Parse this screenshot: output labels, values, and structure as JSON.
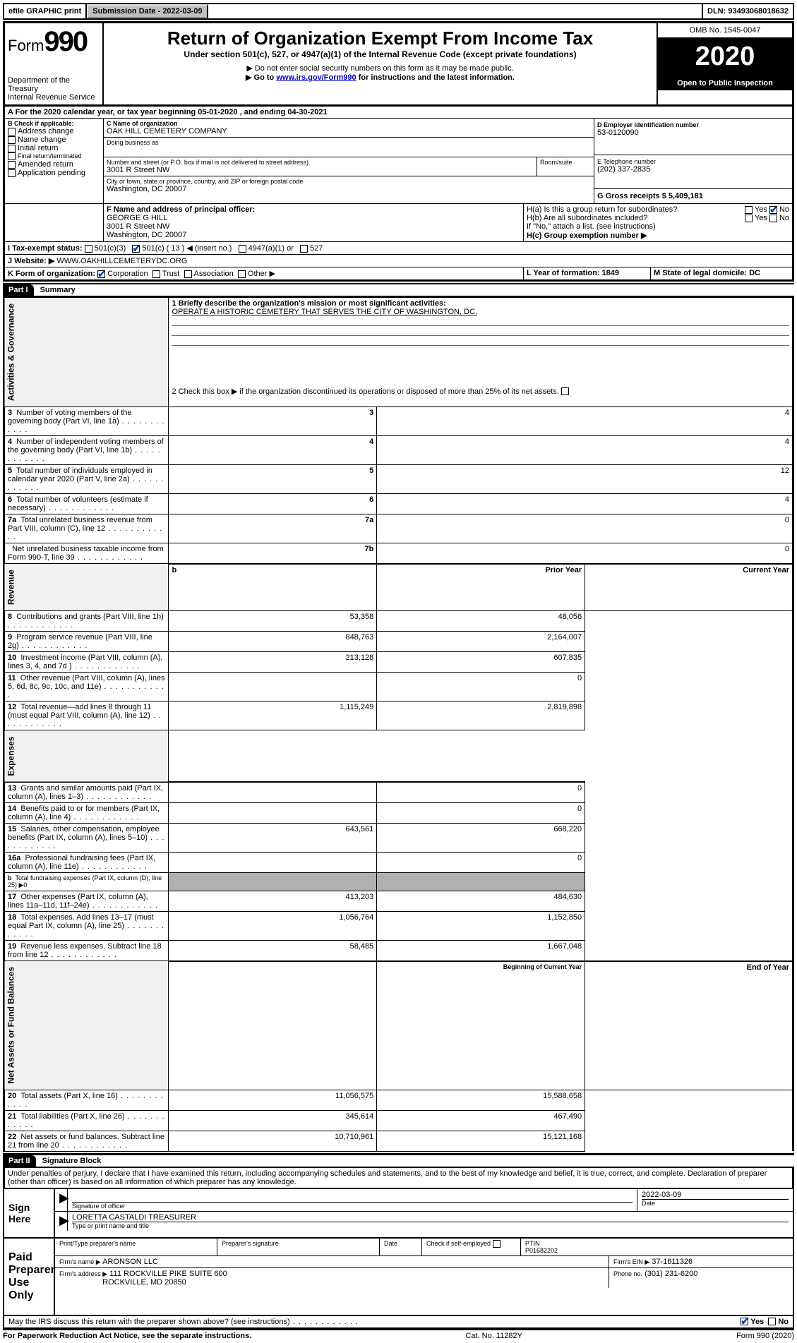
{
  "topbar": {
    "efile": "efile GRAPHIC print",
    "sub_label": "Submission Date - 2022-03-09",
    "dln": "DLN: 93493068018632"
  },
  "header": {
    "form_label": "Form",
    "form_num": "990",
    "dept": "Department of the Treasury\nInternal Revenue Service",
    "title": "Return of Organization Exempt From Income Tax",
    "subtitle": "Under section 501(c), 527, or 4947(a)(1) of the Internal Revenue Code (except private foundations)",
    "note1": "▶ Do not enter social security numbers on this form as it may be made public.",
    "note2_pre": "▶ Go to ",
    "note2_link": "www.irs.gov/Form990",
    "note2_post": " for instructions and the latest information.",
    "omb": "OMB No. 1545-0047",
    "year": "2020",
    "open": "Open to Public Inspection"
  },
  "A": {
    "line": "For the 2020 calendar year, or tax year beginning 05-01-2020   , and ending 04-30-2021"
  },
  "B": {
    "label": "B Check if applicable:",
    "opts": [
      "Address change",
      "Name change",
      "Initial return",
      "Final return/terminated",
      "Amended return",
      "Application pending"
    ]
  },
  "C": {
    "name_label": "C Name of organization",
    "name": "OAK HILL CEMETERY COMPANY",
    "dba_label": "Doing business as",
    "addr_label": "Number and street (or P.O. box if mail is not delivered to street address)",
    "room_label": "Room/suite",
    "addr": "3001 R Street NW",
    "city_label": "City or town, state or province, country, and ZIP or foreign postal code",
    "city": "Washington, DC  20007"
  },
  "D": {
    "label": "D Employer identification number",
    "val": "53-0120090"
  },
  "E": {
    "label": "E Telephone number",
    "val": "(202) 337-2835"
  },
  "G": {
    "label": "G Gross receipts $ 5,409,181"
  },
  "F": {
    "label": "F  Name and address of principal officer:",
    "name": "GEORGE G HILL",
    "addr1": "3001 R Street NW",
    "addr2": "Washington, DC  20007"
  },
  "H": {
    "a": "H(a)  Is this a group return for subordinates?",
    "b": "H(b)  Are all subordinates included?",
    "b_note": "If \"No,\" attach a list. (see instructions)",
    "c": "H(c)  Group exemption number ▶",
    "yes": "Yes",
    "no": "No"
  },
  "I": {
    "label": "I   Tax-exempt status:",
    "o1": "501(c)(3)",
    "o2": "501(c) ( 13 ) ◀ (insert no.)",
    "o3": "4947(a)(1) or",
    "o4": "527"
  },
  "J": {
    "label": "J   Website: ▶",
    "val": "WWW.OAKHILLCEMETERYDC.ORG"
  },
  "K": {
    "label": "K Form of organization:",
    "o1": "Corporation",
    "o2": "Trust",
    "o3": "Association",
    "o4": "Other ▶"
  },
  "L": {
    "label": "L Year of formation: 1849"
  },
  "M": {
    "label": "M State of legal domicile: DC"
  },
  "part1": {
    "tag": "Part I",
    "title": "Summary",
    "q1": "1  Briefly describe the organization's mission or most significant activities:",
    "q1_ans": "OPERATE A HISTORIC CEMETERY THAT SERVES THE CITY OF WASHINGTON, DC.",
    "q2": "2   Check this box ▶          if the organization discontinued its operations or disposed of more than 25% of its net assets.",
    "rows_gov": [
      {
        "n": "3",
        "t": "Number of voting members of the governing body (Part VI, line 1a)",
        "k": "3",
        "v": "4"
      },
      {
        "n": "4",
        "t": "Number of independent voting members of the governing body (Part VI, line 1b)",
        "k": "4",
        "v": "4"
      },
      {
        "n": "5",
        "t": "Total number of individuals employed in calendar year 2020 (Part V, line 2a)",
        "k": "5",
        "v": "12"
      },
      {
        "n": "6",
        "t": "Total number of volunteers (estimate if necessary)",
        "k": "6",
        "v": "4"
      },
      {
        "n": "7a",
        "t": "Total unrelated business revenue from Part VIII, column (C), line 12",
        "k": "7a",
        "v": "0"
      },
      {
        "n": "",
        "t": "Net unrelated business taxable income from Form 990-T, line 39",
        "k": "7b",
        "v": "0"
      }
    ],
    "hdr_prior": "Prior Year",
    "hdr_curr": "Current Year",
    "rows_rev": [
      {
        "n": "8",
        "t": "Contributions and grants (Part VIII, line 1h)",
        "p": "53,358",
        "c": "48,056"
      },
      {
        "n": "9",
        "t": "Program service revenue (Part VIII, line 2g)",
        "p": "848,763",
        "c": "2,164,007"
      },
      {
        "n": "10",
        "t": "Investment income (Part VIII, column (A), lines 3, 4, and 7d )",
        "p": "213,128",
        "c": "607,835"
      },
      {
        "n": "11",
        "t": "Other revenue (Part VIII, column (A), lines 5, 6d, 8c, 9c, 10c, and 11e)",
        "p": "",
        "c": "0"
      },
      {
        "n": "12",
        "t": "Total revenue—add lines 8 through 11 (must equal Part VIII, column (A), line 12)",
        "p": "1,115,249",
        "c": "2,819,898"
      }
    ],
    "rows_exp": [
      {
        "n": "13",
        "t": "Grants and similar amounts paid (Part IX, column (A), lines 1–3)",
        "p": "",
        "c": "0"
      },
      {
        "n": "14",
        "t": "Benefits paid to or for members (Part IX, column (A), line 4)",
        "p": "",
        "c": "0"
      },
      {
        "n": "15",
        "t": "Salaries, other compensation, employee benefits (Part IX, column (A), lines 5–10)",
        "p": "643,561",
        "c": "668,220"
      },
      {
        "n": "16a",
        "t": "Professional fundraising fees (Part IX, column (A), line 11e)",
        "p": "",
        "c": "0"
      },
      {
        "n": "b",
        "t": "Total fundraising expenses (Part IX, column (D), line 25) ▶0",
        "p": "GRAY",
        "c": "GRAY",
        "small": true
      },
      {
        "n": "17",
        "t": "Other expenses (Part IX, column (A), lines 11a–11d, 11f–24e)",
        "p": "413,203",
        "c": "484,630"
      },
      {
        "n": "18",
        "t": "Total expenses. Add lines 13–17 (must equal Part IX, column (A), line 25)",
        "p": "1,056,764",
        "c": "1,152,850"
      },
      {
        "n": "19",
        "t": "Revenue less expenses. Subtract line 18 from line 12",
        "p": "58,485",
        "c": "1,667,048"
      }
    ],
    "hdr_boy": "Beginning of Current Year",
    "hdr_eoy": "End of Year",
    "rows_net": [
      {
        "n": "20",
        "t": "Total assets (Part X, line 16)",
        "p": "11,056,575",
        "c": "15,588,658"
      },
      {
        "n": "21",
        "t": "Total liabilities (Part X, line 26)",
        "p": "345,614",
        "c": "467,490"
      },
      {
        "n": "22",
        "t": "Net assets or fund balances. Subtract line 21 from line 20",
        "p": "10,710,961",
        "c": "15,121,168"
      }
    ],
    "vlabels": {
      "gov": "Activities & Governance",
      "rev": "Revenue",
      "exp": "Expenses",
      "net": "Net Assets or Fund Balances"
    }
  },
  "part2": {
    "tag": "Part II",
    "title": "Signature Block",
    "decl": "Under penalties of perjury, I declare that I have examined this return, including accompanying schedules and statements, and to the best of my knowledge and belief, it is true, correct, and complete. Declaration of preparer (other than officer) is based on all information of which preparer has any knowledge."
  },
  "sign": {
    "here": "Sign Here",
    "sig_officer": "Signature of officer",
    "date_label": "Date",
    "date": "2022-03-09",
    "name": "LORETTA CASTALDI  TREASURER",
    "name_label": "Type or print name and title"
  },
  "paid": {
    "label": "Paid Preparer Use Only",
    "c1": "Print/Type preparer's name",
    "c2": "Preparer's signature",
    "c3": "Date",
    "c4a": "Check         if self-employed",
    "c5a": "PTIN",
    "c5b": "P01682202",
    "firm_label": "Firm's name   ▶",
    "firm": "ARONSON LLC",
    "ein_label": "Firm's EIN ▶",
    "ein": "37-1611326",
    "addr_label": "Firm's address ▶",
    "addr1": "111 ROCKVILLE PIKE SUITE 600",
    "addr2": "ROCKVILLE, MD  20850",
    "phone_label": "Phone no.",
    "phone": "(301) 231-6200"
  },
  "bottom": {
    "q": "May the IRS discuss this return with the preparer shown above? (see instructions)",
    "yes": "Yes",
    "no": "No",
    "pra": "For Paperwork Reduction Act Notice, see the separate instructions.",
    "cat": "Cat. No. 11282Y",
    "form": "Form 990 (2020)"
  }
}
